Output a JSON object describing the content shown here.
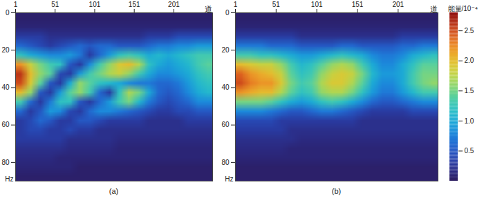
{
  "chart_data": [
    {
      "type": "heatmap",
      "title": "(a)",
      "x_label": "道",
      "y_label": "Hz",
      "xlim": [
        1,
        250
      ],
      "xticks": [
        1,
        51,
        101,
        151,
        201
      ],
      "ylim": [
        0,
        90
      ],
      "yticks": [
        0,
        20,
        40,
        60,
        80
      ],
      "cells": [
        [
          0.05,
          0.05,
          0.05,
          0.05,
          0.05,
          0.05,
          0.05,
          0.05,
          0.05,
          0.05,
          0.05,
          0.05,
          0.05,
          0.05,
          0.05,
          0.05,
          0.05,
          0.05,
          0.05,
          0.05
        ],
        [
          0.1,
          0.1,
          0.1,
          0.1,
          0.1,
          0.1,
          0.1,
          0.1,
          0.1,
          0.1,
          0.1,
          0.1,
          0.1,
          0.1,
          0.1,
          0.1,
          0.1,
          0.1,
          0.1,
          0.1
        ],
        [
          0.3,
          0.3,
          0.3,
          0.2,
          0.2,
          0.2,
          0.2,
          0.2,
          0.2,
          0.2,
          0.2,
          0.2,
          0.2,
          0.3,
          0.3,
          0.3,
          0.4,
          0.4,
          0.4,
          0.4
        ],
        [
          0.6,
          0.5,
          0.4,
          0.3,
          0.4,
          0.5,
          0.6,
          0.5,
          0.6,
          0.6,
          0.5,
          0.5,
          0.5,
          0.6,
          0.7,
          0.7,
          0.8,
          0.8,
          0.9,
          0.9
        ],
        [
          1.2,
          1.0,
          0.9,
          0.8,
          0.8,
          0.9,
          0.7,
          0.3,
          0.6,
          0.9,
          1.2,
          1.3,
          1.2,
          1.0,
          1.1,
          1.0,
          1.1,
          1.2,
          1.3,
          1.3
        ],
        [
          2.2,
          1.8,
          1.5,
          1.3,
          1.2,
          0.5,
          0.3,
          0.8,
          1.3,
          1.6,
          1.9,
          2.0,
          1.7,
          1.2,
          1.0,
          0.9,
          1.0,
          1.1,
          1.3,
          1.4
        ],
        [
          2.6,
          2.0,
          1.6,
          1.4,
          0.4,
          0.3,
          0.9,
          1.3,
          1.5,
          1.7,
          1.8,
          1.6,
          1.3,
          1.0,
          0.8,
          0.8,
          0.9,
          1.0,
          1.2,
          1.3
        ],
        [
          2.5,
          1.9,
          1.4,
          0.5,
          0.3,
          1.0,
          1.6,
          1.4,
          1.2,
          1.1,
          1.0,
          0.8,
          0.7,
          0.7,
          0.6,
          0.6,
          0.7,
          0.9,
          1.1,
          1.2
        ],
        [
          2.0,
          1.6,
          0.5,
          0.3,
          0.9,
          1.4,
          1.6,
          1.3,
          0.6,
          0.3,
          1.2,
          1.7,
          1.5,
          1.0,
          0.6,
          0.5,
          0.6,
          0.8,
          1.0,
          1.1
        ],
        [
          1.3,
          0.6,
          0.3,
          0.7,
          1.2,
          1.2,
          0.5,
          0.3,
          0.6,
          0.9,
          1.3,
          1.5,
          1.1,
          0.7,
          0.5,
          0.4,
          0.5,
          0.6,
          0.8,
          0.8
        ],
        [
          0.6,
          0.3,
          0.5,
          0.9,
          0.8,
          0.4,
          0.3,
          0.6,
          0.8,
          0.8,
          0.7,
          0.6,
          0.5,
          0.4,
          0.3,
          0.3,
          0.4,
          0.4,
          0.5,
          0.5
        ],
        [
          0.3,
          0.4,
          0.6,
          0.5,
          0.3,
          0.3,
          0.5,
          0.5,
          0.4,
          0.3,
          0.3,
          0.3,
          0.3,
          0.2,
          0.2,
          0.2,
          0.2,
          0.3,
          0.3,
          0.3
        ],
        [
          0.3,
          0.4,
          0.4,
          0.3,
          0.3,
          0.4,
          0.3,
          0.3,
          0.2,
          0.2,
          0.2,
          0.2,
          0.2,
          0.2,
          0.2,
          0.2,
          0.2,
          0.2,
          0.2,
          0.2
        ],
        [
          0.3,
          0.3,
          0.3,
          0.3,
          0.3,
          0.2,
          0.2,
          0.2,
          0.2,
          0.2,
          0.15,
          0.15,
          0.15,
          0.15,
          0.15,
          0.15,
          0.15,
          0.15,
          0.15,
          0.15
        ],
        [
          0.2,
          0.2,
          0.2,
          0.2,
          0.2,
          0.15,
          0.15,
          0.15,
          0.15,
          0.15,
          0.1,
          0.1,
          0.1,
          0.1,
          0.1,
          0.1,
          0.1,
          0.1,
          0.1,
          0.1
        ],
        [
          0.15,
          0.15,
          0.15,
          0.15,
          0.1,
          0.1,
          0.1,
          0.1,
          0.1,
          0.1,
          0.1,
          0.1,
          0.1,
          0.1,
          0.1,
          0.1,
          0.1,
          0.1,
          0.1,
          0.1
        ],
        [
          0.1,
          0.1,
          0.1,
          0.1,
          0.1,
          0.1,
          0.05,
          0.05,
          0.05,
          0.05,
          0.05,
          0.05,
          0.05,
          0.05,
          0.05,
          0.05,
          0.05,
          0.05,
          0.05,
          0.05
        ],
        [
          0.05,
          0.05,
          0.05,
          0.05,
          0.05,
          0.05,
          0.05,
          0.05,
          0.05,
          0.05,
          0.05,
          0.05,
          0.05,
          0.05,
          0.05,
          0.05,
          0.05,
          0.05,
          0.05,
          0.05
        ]
      ]
    },
    {
      "type": "heatmap",
      "title": "(b)",
      "x_label": "道",
      "y_label": "Hz",
      "xlim": [
        1,
        250
      ],
      "xticks": [
        1,
        51,
        101,
        151,
        201
      ],
      "ylim": [
        0,
        90
      ],
      "yticks": [
        0,
        20,
        40,
        60,
        80
      ],
      "cells": [
        [
          0.05,
          0.05,
          0.05,
          0.05,
          0.05,
          0.05,
          0.05,
          0.05,
          0.05,
          0.05,
          0.05,
          0.05,
          0.05,
          0.05,
          0.05,
          0.05,
          0.05,
          0.05,
          0.05,
          0.05
        ],
        [
          0.1,
          0.1,
          0.1,
          0.1,
          0.1,
          0.1,
          0.1,
          0.1,
          0.1,
          0.1,
          0.1,
          0.1,
          0.1,
          0.1,
          0.1,
          0.1,
          0.1,
          0.1,
          0.1,
          0.1
        ],
        [
          0.3,
          0.3,
          0.3,
          0.3,
          0.3,
          0.3,
          0.2,
          0.2,
          0.2,
          0.2,
          0.2,
          0.2,
          0.2,
          0.2,
          0.2,
          0.2,
          0.3,
          0.3,
          0.3,
          0.3
        ],
        [
          0.7,
          0.7,
          0.7,
          0.6,
          0.6,
          0.6,
          0.5,
          0.5,
          0.5,
          0.5,
          0.6,
          0.6,
          0.5,
          0.5,
          0.5,
          0.5,
          0.6,
          0.6,
          0.7,
          0.7
        ],
        [
          1.3,
          1.3,
          1.2,
          1.2,
          1.1,
          1.0,
          0.9,
          0.9,
          1.0,
          1.1,
          1.2,
          1.1,
          1.0,
          0.8,
          0.7,
          0.7,
          0.8,
          1.0,
          1.1,
          1.2
        ],
        [
          2.0,
          1.9,
          1.8,
          1.8,
          1.6,
          1.3,
          1.1,
          1.2,
          1.4,
          1.6,
          1.7,
          1.6,
          1.3,
          1.0,
          0.8,
          0.8,
          1.0,
          1.2,
          1.4,
          1.4
        ],
        [
          2.4,
          2.2,
          2.1,
          2.0,
          1.8,
          1.4,
          1.2,
          1.3,
          1.6,
          1.8,
          1.9,
          1.8,
          1.5,
          1.1,
          0.9,
          0.9,
          1.0,
          1.3,
          1.5,
          1.5
        ],
        [
          2.5,
          2.3,
          2.2,
          2.2,
          1.9,
          1.5,
          1.3,
          1.4,
          1.7,
          1.9,
          1.9,
          1.7,
          1.4,
          1.0,
          0.8,
          0.8,
          1.0,
          1.3,
          1.5,
          1.6
        ],
        [
          2.2,
          2.1,
          2.0,
          2.0,
          1.7,
          1.4,
          1.2,
          1.3,
          1.6,
          1.7,
          1.7,
          1.5,
          1.2,
          0.9,
          0.7,
          0.7,
          0.9,
          1.1,
          1.3,
          1.3
        ],
        [
          1.5,
          1.5,
          1.5,
          1.4,
          1.2,
          1.0,
          0.9,
          1.0,
          1.2,
          1.3,
          1.2,
          1.0,
          0.8,
          0.6,
          0.5,
          0.5,
          0.6,
          0.7,
          0.8,
          0.8
        ],
        [
          0.8,
          0.8,
          0.8,
          0.7,
          0.6,
          0.5,
          0.5,
          0.6,
          0.7,
          0.7,
          0.6,
          0.5,
          0.4,
          0.3,
          0.3,
          0.3,
          0.3,
          0.4,
          0.4,
          0.4
        ],
        [
          0.4,
          0.4,
          0.4,
          0.4,
          0.3,
          0.3,
          0.3,
          0.3,
          0.3,
          0.3,
          0.3,
          0.3,
          0.2,
          0.2,
          0.2,
          0.2,
          0.2,
          0.2,
          0.2,
          0.2
        ],
        [
          0.3,
          0.3,
          0.3,
          0.3,
          0.3,
          0.2,
          0.2,
          0.2,
          0.2,
          0.2,
          0.2,
          0.2,
          0.2,
          0.2,
          0.2,
          0.2,
          0.2,
          0.2,
          0.2,
          0.2
        ],
        [
          0.2,
          0.2,
          0.2,
          0.2,
          0.2,
          0.2,
          0.15,
          0.15,
          0.15,
          0.15,
          0.15,
          0.15,
          0.15,
          0.15,
          0.15,
          0.15,
          0.15,
          0.15,
          0.15,
          0.15
        ],
        [
          0.15,
          0.15,
          0.15,
          0.15,
          0.15,
          0.1,
          0.1,
          0.1,
          0.1,
          0.1,
          0.1,
          0.1,
          0.1,
          0.1,
          0.1,
          0.1,
          0.1,
          0.1,
          0.1,
          0.1
        ],
        [
          0.1,
          0.1,
          0.1,
          0.1,
          0.1,
          0.1,
          0.1,
          0.1,
          0.1,
          0.1,
          0.1,
          0.1,
          0.1,
          0.1,
          0.1,
          0.1,
          0.1,
          0.1,
          0.1,
          0.1
        ],
        [
          0.05,
          0.05,
          0.05,
          0.05,
          0.05,
          0.05,
          0.05,
          0.05,
          0.05,
          0.05,
          0.05,
          0.05,
          0.05,
          0.05,
          0.05,
          0.05,
          0.05,
          0.05,
          0.05,
          0.05
        ],
        [
          0.05,
          0.05,
          0.05,
          0.05,
          0.05,
          0.05,
          0.05,
          0.05,
          0.05,
          0.05,
          0.05,
          0.05,
          0.05,
          0.05,
          0.05,
          0.05,
          0.05,
          0.05,
          0.05,
          0.05
        ]
      ],
      "colorbar": {
        "label": "能量/10⁻⁴",
        "range": [
          0,
          2.8
        ],
        "ticks": [
          0.5,
          {
            "value": 1,
            "label": "1.0"
          },
          1.5,
          {
            "value": 2,
            "label": "2.0"
          },
          2.5
        ]
      }
    }
  ]
}
